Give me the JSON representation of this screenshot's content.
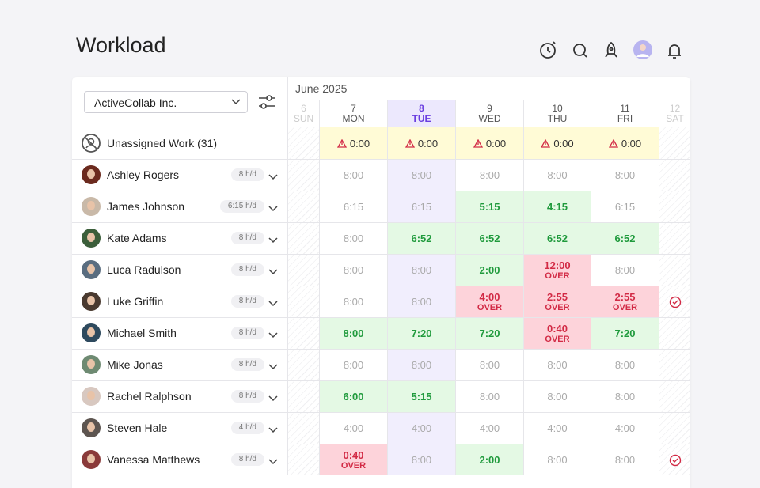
{
  "header": {
    "title": "Workload"
  },
  "filter": {
    "company": "ActiveCollab Inc."
  },
  "calendar": {
    "month": "June 2025",
    "today": 2,
    "days": [
      {
        "date": "6",
        "weekday": "SUN",
        "weekend": true
      },
      {
        "date": "7",
        "weekday": "MON"
      },
      {
        "date": "8",
        "weekday": "TUE"
      },
      {
        "date": "9",
        "weekday": "WED"
      },
      {
        "date": "10",
        "weekday": "THU"
      },
      {
        "date": "11",
        "weekday": "FRI"
      },
      {
        "date": "12",
        "weekday": "SAT",
        "weekend": true
      }
    ]
  },
  "unassigned": {
    "label": "Unassigned Work (31)",
    "cells": [
      null,
      "0:00",
      "0:00",
      "0:00",
      "0:00",
      "0:00",
      null
    ]
  },
  "people": [
    {
      "name": "Ashley Rogers",
      "capacity": "8 h/d",
      "avatar": "#6b2a1e",
      "cells": [
        null,
        "8:00",
        "8:00",
        "8:00",
        "8:00",
        "8:00",
        null
      ]
    },
    {
      "name": "James Johnson",
      "capacity": "6:15 h/d",
      "avatar": "#c9b9a8",
      "cells": [
        null,
        "6:15",
        "6:15",
        {
          "text": "5:15",
          "color": "green"
        },
        {
          "text": "4:15",
          "color": "green"
        },
        "6:15",
        null
      ]
    },
    {
      "name": "Kate Adams",
      "capacity": "8 h/d",
      "avatar": "#3b5e3a",
      "cells": [
        null,
        "8:00",
        {
          "text": "6:52",
          "color": "green"
        },
        {
          "text": "6:52",
          "color": "green"
        },
        {
          "text": "6:52",
          "color": "green"
        },
        {
          "text": "6:52",
          "color": "green"
        },
        null
      ]
    },
    {
      "name": "Luca Radulson",
      "capacity": "8 h/d",
      "avatar": "#5a6d80",
      "cells": [
        null,
        "8:00",
        "8:00",
        {
          "text": "2:00",
          "color": "green"
        },
        {
          "text": "12:00",
          "note": "OVER"
        },
        "8:00",
        null
      ]
    },
    {
      "name": "Luke Griffin",
      "capacity": "8 h/d",
      "avatar": "#4a3a30",
      "cells": [
        null,
        "8:00",
        "8:00",
        {
          "text": "4:00",
          "note": "OVER"
        },
        {
          "text": "2:55",
          "note": "OVER"
        },
        {
          "text": "2:55",
          "note": "OVER"
        },
        {
          "check": true
        }
      ]
    },
    {
      "name": "Michael Smith",
      "capacity": "8 h/d",
      "avatar": "#2e4a5e",
      "cells": [
        null,
        {
          "text": "8:00",
          "color": "green"
        },
        {
          "text": "7:20",
          "color": "green"
        },
        {
          "text": "7:20",
          "color": "green"
        },
        {
          "text": "0:40",
          "note": "OVER"
        },
        {
          "text": "7:20",
          "color": "green"
        },
        null
      ]
    },
    {
      "name": "Mike Jonas",
      "capacity": "8 h/d",
      "avatar": "#6e8a72",
      "cells": [
        null,
        "8:00",
        "8:00",
        "8:00",
        "8:00",
        "8:00",
        null
      ]
    },
    {
      "name": "Rachel Ralphson",
      "capacity": "8 h/d",
      "avatar": "#d8c8c0",
      "cells": [
        null,
        {
          "text": "6:00",
          "color": "green"
        },
        {
          "text": "5:15",
          "color": "green"
        },
        "8:00",
        "8:00",
        "8:00",
        null
      ]
    },
    {
      "name": "Steven Hale",
      "capacity": "4 h/d",
      "avatar": "#5d5550",
      "cells": [
        null,
        "4:00",
        "4:00",
        "4:00",
        "4:00",
        "4:00",
        null
      ]
    },
    {
      "name": "Vanessa Matthews",
      "capacity": "8 h/d",
      "avatar": "#8a3a3a",
      "cells": [
        null,
        {
          "text": "0:40",
          "note": "OVER"
        },
        "8:00",
        {
          "text": "2:00",
          "color": "green"
        },
        "8:00",
        "8:00",
        {
          "check": true
        }
      ]
    }
  ]
}
